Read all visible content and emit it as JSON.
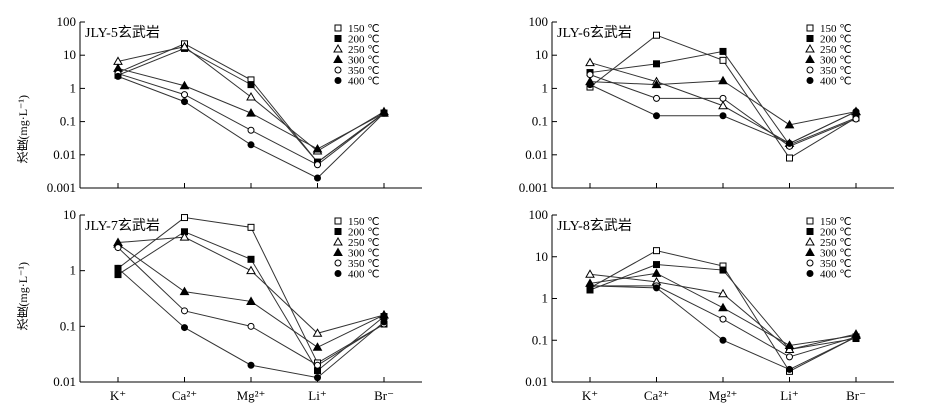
{
  "figure": {
    "ylabel": "浓度(mg·L⁻¹)",
    "categories": [
      "K⁺",
      "Ca²⁺",
      "Mg²⁺",
      "Li⁺",
      "Br⁻"
    ]
  },
  "chart_data": [
    {
      "type": "line",
      "title": "JLY-5玄武岩",
      "yscale": "log",
      "ylim": [
        0.001,
        100
      ],
      "yticks": [
        "100",
        "10",
        "1",
        "0.1",
        "0.01",
        "0.001"
      ],
      "legend_position": "top-right",
      "categories": [
        "K⁺",
        "Ca²⁺",
        "Mg²⁺",
        "Li⁺",
        "Br⁻"
      ],
      "series": [
        {
          "name": "150 ℃",
          "marker": "square-open",
          "values": [
            3.0,
            22,
            1.8,
            0.006,
            0.18
          ]
        },
        {
          "name": "200 ℃",
          "marker": "square-filled",
          "values": [
            2.5,
            16,
            1.3,
            0.006,
            0.18
          ]
        },
        {
          "name": "250 ℃",
          "marker": "triangle-open",
          "values": [
            6.5,
            18,
            0.55,
            0.013,
            0.2
          ]
        },
        {
          "name": "300 ℃",
          "marker": "triangle-filled",
          "values": [
            4.0,
            1.2,
            0.18,
            0.015,
            0.18
          ]
        },
        {
          "name": "350 ℃",
          "marker": "circle-open",
          "values": [
            2.8,
            0.65,
            0.055,
            0.005,
            0.18
          ]
        },
        {
          "name": "400 ℃",
          "marker": "circle-filled",
          "values": [
            2.3,
            0.4,
            0.02,
            0.002,
            0.18
          ]
        }
      ]
    },
    {
      "type": "line",
      "title": "JLY-6玄武岩",
      "yscale": "log",
      "ylim": [
        0.001,
        100
      ],
      "yticks": [
        "100",
        "10",
        "1",
        "0.1",
        "0.01",
        "0.001"
      ],
      "legend_position": "top-right",
      "categories": [
        "K⁺",
        "Ca²⁺",
        "Mg²⁺",
        "Li⁺",
        "Br⁻"
      ],
      "series": [
        {
          "name": "150 ℃",
          "marker": "square-open",
          "values": [
            1.1,
            40,
            7,
            0.008,
            0.13
          ]
        },
        {
          "name": "200 ℃",
          "marker": "square-filled",
          "values": [
            3.0,
            5.5,
            13,
            0.02,
            0.13
          ]
        },
        {
          "name": "250 ℃",
          "marker": "triangle-open",
          "values": [
            6.0,
            1.6,
            0.3,
            0.022,
            0.2
          ]
        },
        {
          "name": "300 ℃",
          "marker": "triangle-filled",
          "values": [
            1.6,
            1.3,
            1.7,
            0.08,
            0.2
          ]
        },
        {
          "name": "350 ℃",
          "marker": "circle-open",
          "values": [
            2.6,
            0.5,
            0.5,
            0.018,
            0.12
          ]
        },
        {
          "name": "400 ℃",
          "marker": "circle-filled",
          "values": [
            1.3,
            0.15,
            0.15,
            0.022,
            0.2
          ]
        }
      ]
    },
    {
      "type": "line",
      "title": "JLY-7玄武岩",
      "yscale": "log",
      "ylim": [
        0.01,
        10
      ],
      "yticks": [
        "10",
        "1",
        "0.1",
        "0.01"
      ],
      "legend_position": "top-right",
      "categories": [
        "K⁺",
        "Ca²⁺",
        "Mg²⁺",
        "Li⁺",
        "Br⁻"
      ],
      "series": [
        {
          "name": "150 ℃",
          "marker": "square-open",
          "values": [
            1.1,
            9,
            6,
            0.022,
            0.11
          ]
        },
        {
          "name": "200 ℃",
          "marker": "square-filled",
          "values": [
            0.85,
            5,
            1.6,
            0.016,
            0.15
          ]
        },
        {
          "name": "250 ℃",
          "marker": "triangle-open",
          "values": [
            3.2,
            4,
            1.0,
            0.075,
            0.16
          ]
        },
        {
          "name": "300 ℃",
          "marker": "triangle-filled",
          "values": [
            3.0,
            0.42,
            0.28,
            0.042,
            0.16
          ]
        },
        {
          "name": "350 ℃",
          "marker": "circle-open",
          "values": [
            2.6,
            0.19,
            0.1,
            0.02,
            0.11
          ]
        },
        {
          "name": "400 ℃",
          "marker": "circle-filled",
          "values": [
            1.1,
            0.095,
            0.02,
            0.012,
            0.12
          ]
        }
      ]
    },
    {
      "type": "line",
      "title": "JLY-8玄武岩",
      "yscale": "log",
      "ylim": [
        0.01,
        100
      ],
      "yticks": [
        "100",
        "10",
        "1",
        "0.1",
        "0.01"
      ],
      "legend_position": "top-right",
      "categories": [
        "K⁺",
        "Ca²⁺",
        "Mg²⁺",
        "Li⁺",
        "Br⁻"
      ],
      "series": [
        {
          "name": "150 ℃",
          "marker": "square-open",
          "values": [
            1.8,
            14,
            6,
            0.018,
            0.12
          ]
        },
        {
          "name": "200 ℃",
          "marker": "square-filled",
          "values": [
            1.6,
            6.5,
            4.8,
            0.06,
            0.11
          ]
        },
        {
          "name": "250 ℃",
          "marker": "triangle-open",
          "values": [
            3.8,
            2.5,
            1.3,
            0.06,
            0.14
          ]
        },
        {
          "name": "300 ℃",
          "marker": "triangle-filled",
          "values": [
            2.3,
            4.0,
            0.6,
            0.075,
            0.13
          ]
        },
        {
          "name": "350 ℃",
          "marker": "circle-open",
          "values": [
            2.0,
            2.0,
            0.32,
            0.04,
            0.12
          ]
        },
        {
          "name": "400 ℃",
          "marker": "circle-filled",
          "values": [
            2.0,
            1.8,
            0.1,
            0.02,
            0.12
          ]
        }
      ]
    }
  ]
}
